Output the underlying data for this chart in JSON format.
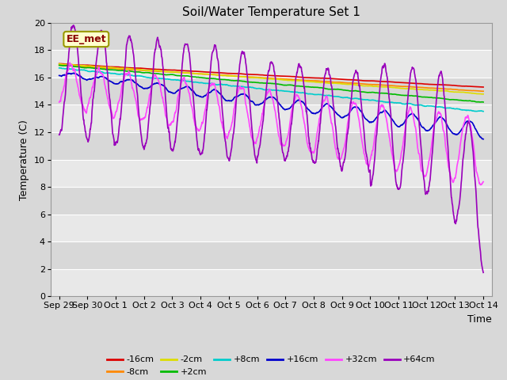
{
  "title": "Soil/Water Temperature Set 1",
  "xlabel": "Time",
  "ylabel": "Temperature (C)",
  "annotation": "EE_met",
  "xlim_days": [
    -0.3,
    15.3
  ],
  "ylim": [
    0,
    20
  ],
  "yticks": [
    0,
    2,
    4,
    6,
    8,
    10,
    12,
    14,
    16,
    18,
    20
  ],
  "xtick_labels": [
    "Sep 29",
    "Sep 30",
    "Oct 1",
    "Oct 2",
    "Oct 3",
    "Oct 4",
    "Oct 5",
    "Oct 6",
    "Oct 7",
    "Oct 8",
    "Oct 9",
    "Oct 10",
    "Oct 11",
    "Oct 12",
    "Oct 13",
    "Oct 14"
  ],
  "xtick_positions": [
    0,
    1,
    2,
    3,
    4,
    5,
    6,
    7,
    8,
    9,
    10,
    11,
    12,
    13,
    14,
    15
  ],
  "series_colors": {
    "-16cm": "#dd0000",
    "-8cm": "#ff8800",
    "-2cm": "#dddd00",
    "+2cm": "#00bb00",
    "+8cm": "#00cccc",
    "+16cm": "#0000cc",
    "+32cm": "#ff44ff",
    "+64cm": "#9900bb"
  },
  "background_color": "#d8d8d8",
  "plot_bg_color_light": "#e8e8e8",
  "plot_bg_color_dark": "#d8d8d8",
  "grid_color": "#ffffff",
  "title_fontsize": 11,
  "axis_fontsize": 9,
  "tick_fontsize": 8
}
